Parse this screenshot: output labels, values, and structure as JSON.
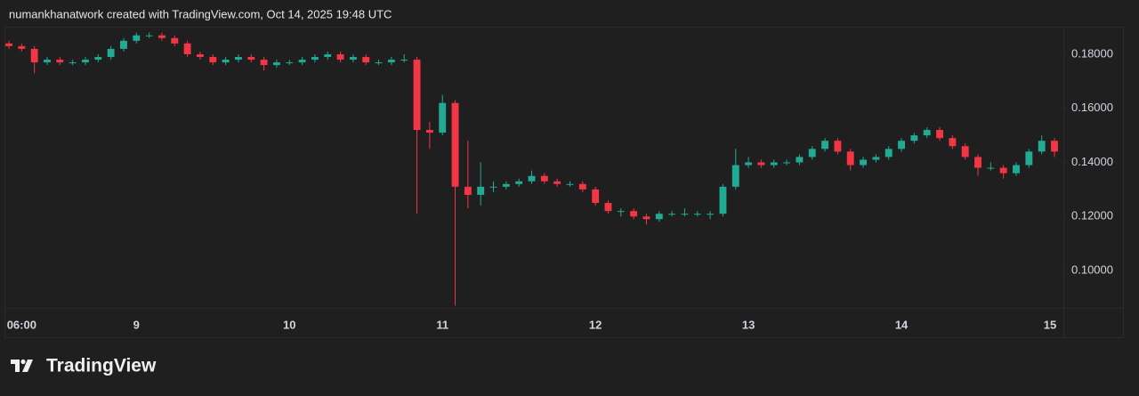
{
  "header": {
    "text": "numankhanatwork created with TradingView.com, Oct 14, 2025 19:48 UTC"
  },
  "chart_data": {
    "type": "candlestick",
    "categories": [
      null,
      "06:00",
      null,
      null,
      null,
      null,
      null,
      null,
      null,
      null,
      "9",
      null,
      null,
      null,
      null,
      null,
      null,
      null,
      null,
      null,
      null,
      null,
      "10",
      null,
      null,
      null,
      null,
      null,
      null,
      null,
      null,
      null,
      null,
      null,
      "11",
      null,
      null,
      null,
      null,
      null,
      null,
      null,
      null,
      null,
      null,
      null,
      "12",
      null,
      null,
      null,
      null,
      null,
      null,
      null,
      null,
      null,
      null,
      null,
      "13",
      null,
      null,
      null,
      null,
      null,
      null,
      null,
      null,
      null,
      null,
      null,
      "14",
      null,
      null,
      null,
      null,
      null,
      null,
      null,
      null,
      null,
      null,
      null,
      "15"
    ],
    "open": [
      0.184,
      0.183,
      0.182,
      0.177,
      0.178,
      0.177,
      0.177,
      0.178,
      0.179,
      0.182,
      0.185,
      0.187,
      0.187,
      0.186,
      0.184,
      0.18,
      0.179,
      0.177,
      0.178,
      0.179,
      0.178,
      0.176,
      0.177,
      0.177,
      0.178,
      0.179,
      0.18,
      0.178,
      0.179,
      0.177,
      0.177,
      0.178,
      0.178,
      0.152,
      0.151,
      0.162,
      0.131,
      0.128,
      0.131,
      0.131,
      0.132,
      0.133,
      0.135,
      0.133,
      0.132,
      0.132,
      0.13,
      0.125,
      0.122,
      0.122,
      0.12,
      0.119,
      0.121,
      0.121,
      0.121,
      0.121,
      0.121,
      0.131,
      0.139,
      0.14,
      0.139,
      0.14,
      0.14,
      0.142,
      0.145,
      0.148,
      0.144,
      0.139,
      0.141,
      0.142,
      0.145,
      0.148,
      0.15,
      0.152,
      0.149,
      0.146,
      0.142,
      0.138,
      0.138,
      0.136,
      0.139,
      0.144,
      0.148
    ],
    "high": [
      0.185,
      0.184,
      0.183,
      0.179,
      0.179,
      0.178,
      0.179,
      0.18,
      0.183,
      0.186,
      0.188,
      0.188,
      0.188,
      0.187,
      0.185,
      0.181,
      0.18,
      0.179,
      0.18,
      0.18,
      0.179,
      0.178,
      0.178,
      0.179,
      0.18,
      0.181,
      0.181,
      0.18,
      0.18,
      0.178,
      0.179,
      0.18,
      0.179,
      0.155,
      0.165,
      0.163,
      0.148,
      0.14,
      0.133,
      0.133,
      0.134,
      0.137,
      0.136,
      0.134,
      0.133,
      0.133,
      0.131,
      0.126,
      0.123,
      0.123,
      0.121,
      0.122,
      0.122,
      0.123,
      0.122,
      0.122,
      0.132,
      0.145,
      0.142,
      0.141,
      0.141,
      0.141,
      0.143,
      0.146,
      0.149,
      0.149,
      0.145,
      0.142,
      0.143,
      0.146,
      0.149,
      0.151,
      0.153,
      0.153,
      0.15,
      0.147,
      0.143,
      0.14,
      0.139,
      0.14,
      0.145,
      0.15,
      0.149
    ],
    "low": [
      0.182,
      0.181,
      0.173,
      0.176,
      0.176,
      0.176,
      0.176,
      0.177,
      0.178,
      0.181,
      0.184,
      0.186,
      0.185,
      0.183,
      0.179,
      0.178,
      0.176,
      0.176,
      0.177,
      0.177,
      0.174,
      0.175,
      0.176,
      0.176,
      0.177,
      0.178,
      0.177,
      0.177,
      0.176,
      0.176,
      0.176,
      0.177,
      0.121,
      0.145,
      0.15,
      0.087,
      0.123,
      0.124,
      0.129,
      0.13,
      0.131,
      0.132,
      0.132,
      0.131,
      0.131,
      0.129,
      0.124,
      0.121,
      0.12,
      0.119,
      0.117,
      0.118,
      0.12,
      0.12,
      0.12,
      0.119,
      0.12,
      0.13,
      0.138,
      0.138,
      0.138,
      0.139,
      0.139,
      0.141,
      0.144,
      0.143,
      0.137,
      0.138,
      0.14,
      0.141,
      0.144,
      0.147,
      0.149,
      0.148,
      0.145,
      0.141,
      0.135,
      0.137,
      0.134,
      0.135,
      0.138,
      0.143,
      0.142
    ],
    "close": [
      0.183,
      0.182,
      0.177,
      0.178,
      0.177,
      0.177,
      0.178,
      0.179,
      0.182,
      0.185,
      0.187,
      0.187,
      0.186,
      0.184,
      0.18,
      0.179,
      0.177,
      0.178,
      0.179,
      0.178,
      0.176,
      0.177,
      0.177,
      0.178,
      0.179,
      0.18,
      0.178,
      0.179,
      0.177,
      0.177,
      0.178,
      0.178,
      0.152,
      0.151,
      0.162,
      0.131,
      0.128,
      0.131,
      0.131,
      0.132,
      0.133,
      0.135,
      0.133,
      0.132,
      0.132,
      0.13,
      0.125,
      0.122,
      0.122,
      0.12,
      0.119,
      0.121,
      0.121,
      0.121,
      0.121,
      0.121,
      0.131,
      0.139,
      0.14,
      0.139,
      0.14,
      0.14,
      0.142,
      0.145,
      0.148,
      0.144,
      0.139,
      0.141,
      0.142,
      0.145,
      0.148,
      0.15,
      0.152,
      0.149,
      0.146,
      0.142,
      0.138,
      0.138,
      0.136,
      0.139,
      0.144,
      0.148,
      0.144
    ],
    "up_color": "#22ab94",
    "down_color": "#f23645",
    "ylim": [
      0.0865,
      0.1902
    ],
    "yticks": [
      {
        "value": 0.18,
        "label": "0.18000"
      },
      {
        "value": 0.16,
        "label": "0.16000"
      },
      {
        "value": 0.14,
        "label": "0.14000"
      },
      {
        "value": 0.12,
        "label": "0.12000"
      },
      {
        "value": 0.1,
        "label": "0.10000"
      }
    ]
  },
  "footer": {
    "logo_text": "TradingView"
  }
}
